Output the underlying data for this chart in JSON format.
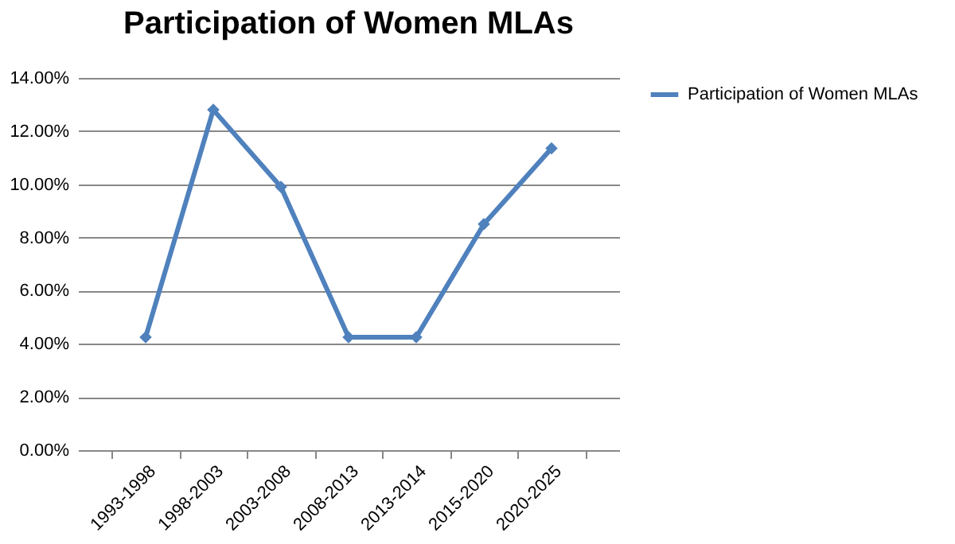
{
  "chart_data": {
    "type": "line",
    "title": "Participation of Women MLAs",
    "categories": [
      "1993-1998",
      "1998-2003",
      "2003-2008",
      "2008-2013",
      "2013-2014",
      "2015-2020",
      "2020-2025"
    ],
    "series": [
      {
        "name": "Participation of Women MLAs",
        "color": "#4f81bd",
        "values": [
          4.25,
          12.8,
          9.9,
          4.25,
          4.25,
          8.5,
          11.35
        ]
      }
    ],
    "ylim": [
      0,
      14
    ],
    "yticks": [
      {
        "value": 0,
        "label": "0.00%"
      },
      {
        "value": 2,
        "label": "2.00%"
      },
      {
        "value": 4,
        "label": "4.00%"
      },
      {
        "value": 6,
        "label": "6.00%"
      },
      {
        "value": 8,
        "label": "8.00%"
      },
      {
        "value": 10,
        "label": "10.00%"
      },
      {
        "value": 12,
        "label": "12.00%"
      },
      {
        "value": 14,
        "label": "14.00%"
      }
    ],
    "grid": "y",
    "legend": "right",
    "marker": "diamond",
    "line_style": "solid"
  }
}
